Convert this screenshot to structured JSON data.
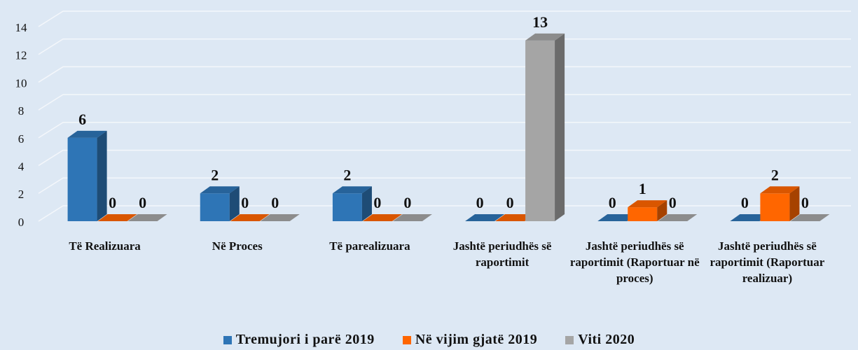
{
  "chart_data": {
    "type": "bar3d",
    "categories": [
      "Të Realizuara",
      "Në Proces",
      "Të parealizuara",
      "Jashtë periudhës së raportimit",
      "Jashtë periudhës së raportimit (Raportuar në proces)",
      "Jashtë periudhës së raportimit (Raportuar realizuar)"
    ],
    "series": [
      {
        "name": "Tremujori i parë 2019",
        "color": "#2e75b6",
        "values": [
          6,
          2,
          2,
          0,
          0,
          0
        ]
      },
      {
        "name": "Në vijim gjatë 2019",
        "color": "#ff6600",
        "values": [
          0,
          0,
          0,
          0,
          1,
          2
        ]
      },
      {
        "name": "Viti 2020",
        "color": "#a5a5a5",
        "values": [
          0,
          0,
          0,
          13,
          0,
          0
        ]
      }
    ],
    "ylim": [
      0,
      14
    ],
    "yticks": [
      0,
      2,
      4,
      6,
      8,
      10,
      12,
      14
    ],
    "grid": true,
    "legend": "bottom"
  }
}
